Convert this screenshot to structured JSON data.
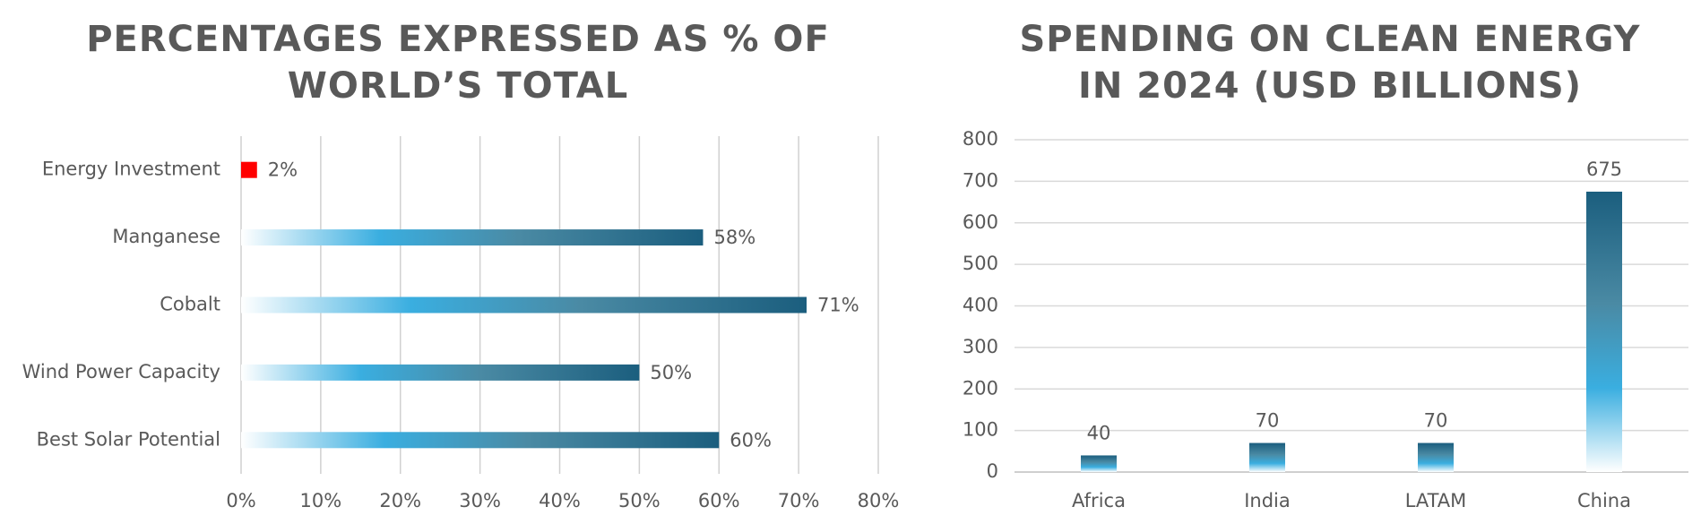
{
  "chart_data": [
    {
      "type": "hbar",
      "title": "PERCENTAGES EXPRESSED AS % OF WORLD’S TOTAL",
      "categories": [
        "Energy Investment",
        "Manganese",
        "Cobalt",
        "Wind Power Capacity",
        "Best Solar Potential"
      ],
      "values": [
        2,
        58,
        71,
        50,
        60
      ],
      "value_labels": [
        "2%",
        "58%",
        "71%",
        "50%",
        "60%"
      ],
      "colors": [
        "#ff0000",
        "#1b5e7e",
        "#1b5e7e",
        "#1b5e7e",
        "#1b5e7e"
      ],
      "fill_styles": [
        "solid",
        "gradient",
        "gradient",
        "gradient",
        "gradient"
      ],
      "xlim": [
        0,
        80
      ],
      "xticks": [
        {
          "value": 0,
          "label": "0%"
        },
        {
          "value": 10,
          "label": "10%"
        },
        {
          "value": 20,
          "label": "20%"
        },
        {
          "value": 30,
          "label": "30%"
        },
        {
          "value": 40,
          "label": "40%"
        },
        {
          "value": 50,
          "label": "50%"
        },
        {
          "value": 60,
          "label": "60%"
        },
        {
          "value": 70,
          "label": "70%"
        },
        {
          "value": 80,
          "label": "80%"
        }
      ],
      "grid": true
    },
    {
      "type": "bar",
      "title": "SPENDING ON CLEAN ENERGY IN 2024 (USD BILLIONS)",
      "categories": [
        "Africa",
        "India",
        "LATAM",
        "China"
      ],
      "values": [
        40,
        70,
        70,
        675
      ],
      "color": "#1b5e7e",
      "ylim": [
        0,
        800
      ],
      "yticks": [
        0,
        100,
        200,
        300,
        400,
        500,
        600,
        700,
        800
      ],
      "grid": true
    }
  ]
}
